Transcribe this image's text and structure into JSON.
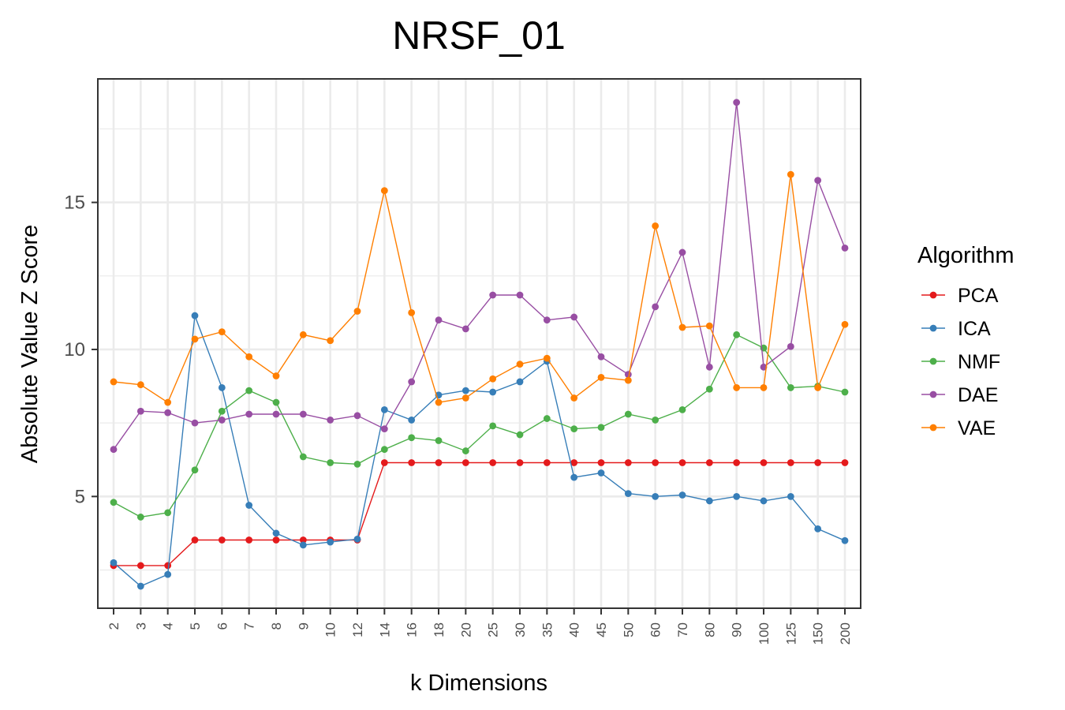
{
  "chart_data": {
    "type": "line",
    "title": "NRSF_01",
    "xlabel": "k Dimensions",
    "ylabel": "Absolute Value Z Score",
    "categories": [
      "2",
      "3",
      "4",
      "5",
      "6",
      "7",
      "8",
      "9",
      "10",
      "12",
      "14",
      "16",
      "18",
      "20",
      "25",
      "30",
      "35",
      "40",
      "45",
      "50",
      "60",
      "70",
      "80",
      "90",
      "100",
      "125",
      "150",
      "200"
    ],
    "yticks": [
      "5",
      "10",
      "15"
    ],
    "ylim": [
      1.2,
      19.2
    ],
    "grid": true,
    "legend": {
      "title": "Algorithm",
      "position": "right"
    },
    "series": [
      {
        "name": "PCA",
        "color": "#e41a1c",
        "values": [
          2.65,
          2.65,
          2.65,
          3.52,
          3.52,
          3.52,
          3.52,
          3.52,
          3.52,
          3.52,
          6.15,
          6.15,
          6.15,
          6.15,
          6.15,
          6.15,
          6.15,
          6.15,
          6.15,
          6.15,
          6.15,
          6.15,
          6.15,
          6.15,
          6.15,
          6.15,
          6.15,
          6.15
        ]
      },
      {
        "name": "ICA",
        "color": "#377eb8",
        "values": [
          2.75,
          1.95,
          2.35,
          11.15,
          8.7,
          4.7,
          3.75,
          3.35,
          3.45,
          3.55,
          7.95,
          7.6,
          8.45,
          8.6,
          8.55,
          8.9,
          9.6,
          5.65,
          5.8,
          5.1,
          5.0,
          5.05,
          4.85,
          5.0,
          4.85,
          5.0,
          3.9,
          3.5
        ]
      },
      {
        "name": "NMF",
        "color": "#4daf4a",
        "values": [
          4.8,
          4.3,
          4.45,
          5.9,
          7.9,
          8.6,
          8.2,
          6.35,
          6.15,
          6.1,
          6.6,
          7.0,
          6.9,
          6.55,
          7.4,
          7.1,
          7.65,
          7.3,
          7.35,
          7.8,
          7.6,
          7.95,
          8.65,
          10.5,
          10.05,
          8.7,
          8.75,
          8.55
        ]
      },
      {
        "name": "DAE",
        "color": "#984ea3",
        "values": [
          6.6,
          7.9,
          7.85,
          7.5,
          7.6,
          7.8,
          7.8,
          7.8,
          7.6,
          7.75,
          7.3,
          8.9,
          11.0,
          10.7,
          11.85,
          11.85,
          11.0,
          11.1,
          9.75,
          9.15,
          11.45,
          13.3,
          9.4,
          18.4,
          9.4,
          10.1,
          15.75,
          13.45
        ]
      },
      {
        "name": "VAE",
        "color": "#ff7f00",
        "values": [
          8.9,
          8.8,
          8.2,
          10.35,
          10.6,
          9.75,
          9.1,
          10.5,
          10.3,
          11.3,
          15.4,
          11.25,
          8.2,
          8.35,
          9.0,
          9.5,
          9.7,
          8.35,
          9.05,
          8.95,
          14.2,
          10.75,
          10.8,
          8.7,
          8.7,
          15.95,
          8.7,
          10.85
        ]
      }
    ]
  }
}
